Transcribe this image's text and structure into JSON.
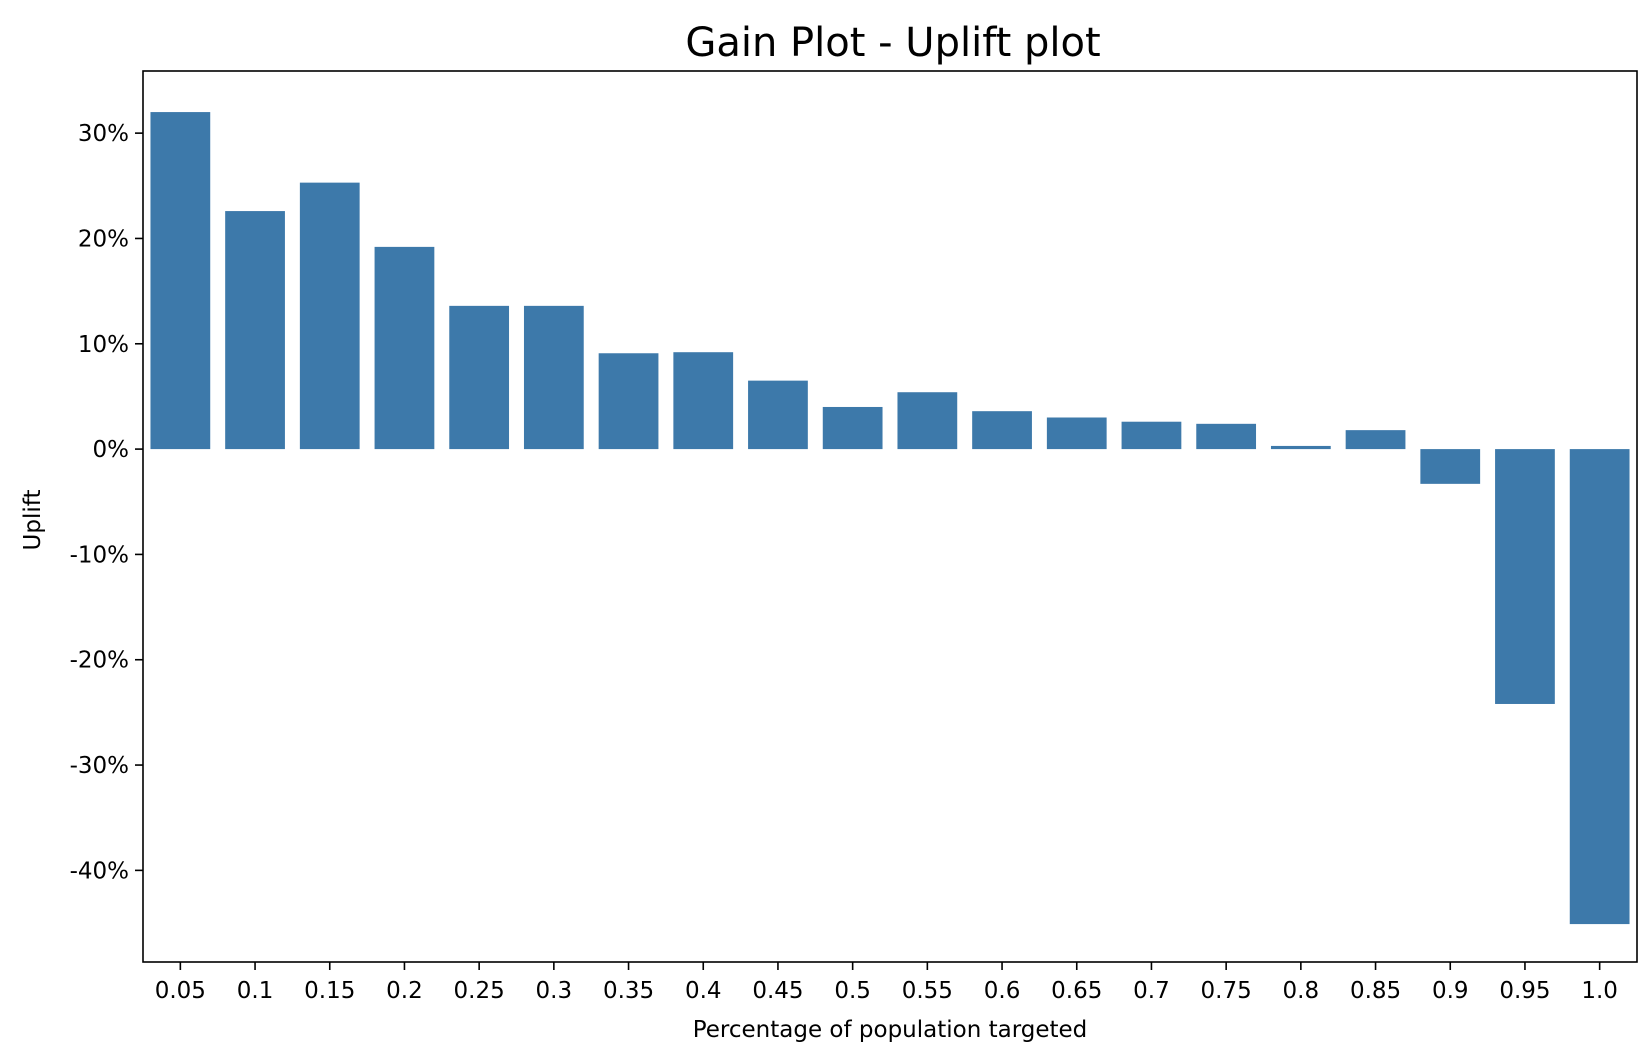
{
  "chart_data": {
    "type": "bar",
    "title": "Gain Plot - Uplift plot",
    "xlabel": "Percentage of population targeted",
    "ylabel": "Uplift",
    "categories": [
      "0.05",
      "0.1",
      "0.15",
      "0.2",
      "0.25",
      "0.3",
      "0.35",
      "0.4",
      "0.45",
      "0.5",
      "0.55",
      "0.6",
      "0.65",
      "0.7",
      "0.75",
      "0.8",
      "0.85",
      "0.9",
      "0.95",
      "1.0"
    ],
    "values": [
      32.0,
      22.6,
      25.3,
      19.2,
      13.6,
      13.6,
      9.1,
      9.2,
      6.5,
      4.0,
      5.4,
      3.6,
      3.0,
      2.6,
      2.4,
      0.3,
      1.8,
      -3.3,
      -24.2,
      -45.1
    ],
    "yticks": [
      30,
      20,
      10,
      0,
      -10,
      -20,
      -30,
      -40
    ],
    "ytick_labels": [
      "30%",
      "20%",
      "10%",
      "0%",
      "-10%",
      "-20%",
      "-30%",
      "-40%"
    ],
    "ylim": [
      -48.7,
      35.9
    ],
    "bar_color": "#3d79aa",
    "grid": false,
    "legend": "none"
  }
}
